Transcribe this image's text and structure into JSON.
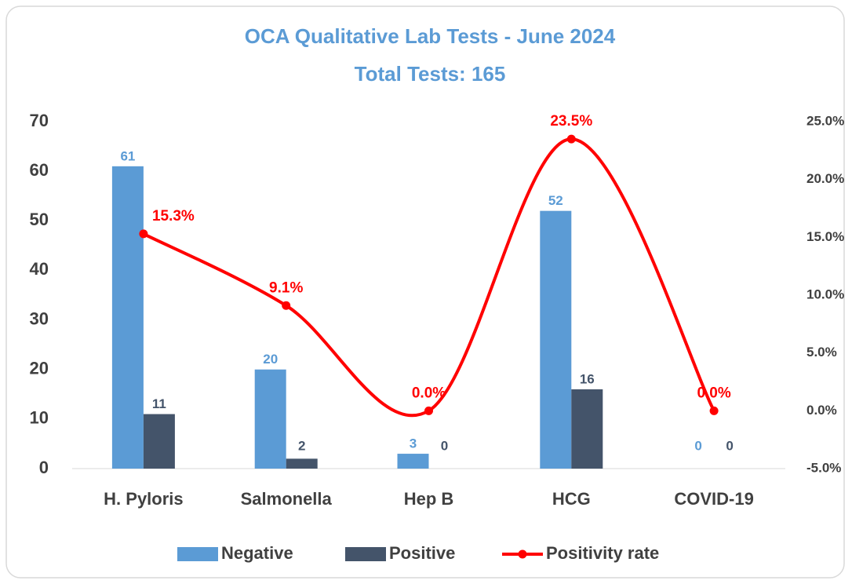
{
  "chart_data": {
    "type": "bar_line",
    "title": "OCA Qualitative Lab Tests - June 2024",
    "subtitle": "Total Tests: 165",
    "categories": [
      "H. Pyloris",
      "Salmonella",
      "Hep B",
      "HCG",
      "COVID-19"
    ],
    "series": [
      {
        "name": "Negative",
        "color": "#5b9bd5",
        "type": "bar",
        "values": [
          61,
          20,
          3,
          52,
          0
        ]
      },
      {
        "name": "Positive",
        "color": "#44546a",
        "type": "bar",
        "values": [
          11,
          2,
          0,
          16,
          0
        ]
      },
      {
        "name": "Positivity rate",
        "color": "#ff0000",
        "type": "line",
        "axis": "y2",
        "values": [
          15.3,
          9.1,
          0.0,
          23.5,
          0.0
        ],
        "value_labels": [
          "15.3%",
          "9.1%",
          "0.0%",
          "23.5%",
          "0.0%"
        ]
      }
    ],
    "ylim": [
      0,
      70
    ],
    "yticks": [
      0,
      10,
      20,
      30,
      40,
      50,
      60,
      70
    ],
    "y2lim": [
      -5,
      25
    ],
    "y2ticks": [
      {
        "value": -5,
        "label": "-5.0%"
      },
      {
        "value": 0,
        "label": "0.0%"
      },
      {
        "value": 5,
        "label": "5.0%"
      },
      {
        "value": 10,
        "label": "10.0%"
      },
      {
        "value": 15,
        "label": "15.0%"
      },
      {
        "value": 20,
        "label": "20.0%"
      },
      {
        "value": 25,
        "label": "25.0%"
      }
    ],
    "legend": "bottom",
    "grid": false
  }
}
